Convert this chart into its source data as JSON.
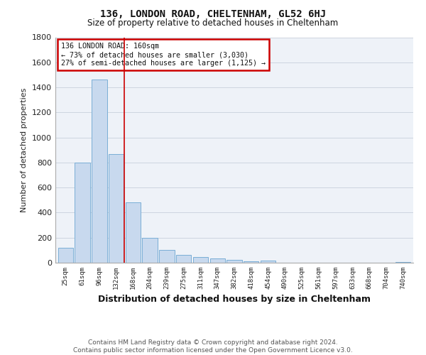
{
  "title": "136, LONDON ROAD, CHELTENHAM, GL52 6HJ",
  "subtitle": "Size of property relative to detached houses in Cheltenham",
  "xlabel": "Distribution of detached houses by size in Cheltenham",
  "ylabel": "Number of detached properties",
  "footer_line1": "Contains HM Land Registry data © Crown copyright and database right 2024.",
  "footer_line2": "Contains public sector information licensed under the Open Government Licence v3.0.",
  "categories": [
    "25sqm",
    "61sqm",
    "96sqm",
    "132sqm",
    "168sqm",
    "204sqm",
    "239sqm",
    "275sqm",
    "311sqm",
    "347sqm",
    "382sqm",
    "418sqm",
    "454sqm",
    "490sqm",
    "525sqm",
    "561sqm",
    "597sqm",
    "633sqm",
    "668sqm",
    "704sqm",
    "740sqm"
  ],
  "values": [
    120,
    800,
    1460,
    870,
    480,
    200,
    100,
    65,
    45,
    35,
    25,
    10,
    15,
    0,
    0,
    0,
    0,
    0,
    0,
    0,
    5
  ],
  "bar_color": "#c8d9ee",
  "bar_edge_color": "#7aaed6",
  "grid_color": "#c8d0dc",
  "background_color": "#eef2f8",
  "vline_position": 3.5,
  "vline_color": "#cc0000",
  "annotation_line1": "136 LONDON ROAD: 160sqm",
  "annotation_line2": "← 73% of detached houses are smaller (3,030)",
  "annotation_line3": "27% of semi-detached houses are larger (1,125) →",
  "annotation_box_color": "#cc0000",
  "ylim": [
    0,
    1800
  ],
  "yticks": [
    0,
    200,
    400,
    600,
    800,
    1000,
    1200,
    1400,
    1600,
    1800
  ]
}
